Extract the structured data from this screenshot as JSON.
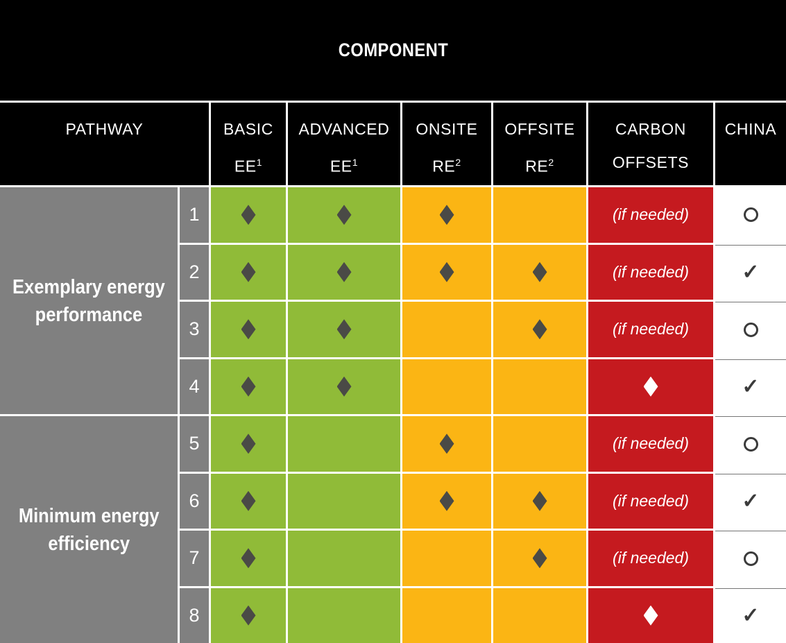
{
  "chart_data": {
    "type": "table",
    "title": "COMPONENT",
    "column_headers": [
      {
        "label": "PATHWAY"
      },
      {
        "line1": "BASIC",
        "line2": "EE",
        "sup": "1"
      },
      {
        "line1": "ADVANCED",
        "line2": "EE",
        "sup": "1"
      },
      {
        "line1": "ONSITE",
        "line2": "RE",
        "sup": "2"
      },
      {
        "line1": "OFFSITE",
        "line2": "RE",
        "sup": "2"
      },
      {
        "line1": "CARBON",
        "line2": "OFFSETS",
        "sup": ""
      },
      {
        "line1": "CHINA",
        "line2": "",
        "sup": ""
      }
    ],
    "row_groups": [
      {
        "lines": [
          "Exemplary energy",
          "performance"
        ],
        "pathways": [
          "1",
          "2",
          "3",
          "4"
        ]
      },
      {
        "lines": [
          "Minimum energy",
          "efficiency"
        ],
        "pathways": [
          "5",
          "6",
          "7",
          "8"
        ]
      }
    ],
    "rows": [
      {
        "pathway": "1",
        "basic_ee": true,
        "advanced_ee": true,
        "onsite_re": true,
        "offsite_re": false,
        "carbon_offsets": "if_needed",
        "china": "circle"
      },
      {
        "pathway": "2",
        "basic_ee": true,
        "advanced_ee": true,
        "onsite_re": true,
        "offsite_re": true,
        "carbon_offsets": "if_needed",
        "china": "check"
      },
      {
        "pathway": "3",
        "basic_ee": true,
        "advanced_ee": true,
        "onsite_re": false,
        "offsite_re": true,
        "carbon_offsets": "if_needed",
        "china": "circle"
      },
      {
        "pathway": "4",
        "basic_ee": true,
        "advanced_ee": true,
        "onsite_re": false,
        "offsite_re": false,
        "carbon_offsets": "diamond",
        "china": "check"
      },
      {
        "pathway": "5",
        "basic_ee": true,
        "advanced_ee": false,
        "onsite_re": true,
        "offsite_re": false,
        "carbon_offsets": "if_needed",
        "china": "circle"
      },
      {
        "pathway": "6",
        "basic_ee": true,
        "advanced_ee": false,
        "onsite_re": true,
        "offsite_re": true,
        "carbon_offsets": "if_needed",
        "china": "check"
      },
      {
        "pathway": "7",
        "basic_ee": true,
        "advanced_ee": false,
        "onsite_re": false,
        "offsite_re": true,
        "carbon_offsets": "if_needed",
        "china": "circle"
      },
      {
        "pathway": "8",
        "basic_ee": true,
        "advanced_ee": false,
        "onsite_re": false,
        "offsite_re": false,
        "carbon_offsets": "diamond",
        "china": "check"
      }
    ],
    "cell_text": {
      "if_needed": "(if needed)"
    },
    "symbols": {
      "diamond": "♦",
      "check": "✓",
      "circle": "○"
    }
  },
  "colors": {
    "background_black": "#000000",
    "group_gray": "#808080",
    "ee_green": "#90BB38",
    "re_orange": "#FBB514",
    "offsets_red": "#C51A1F",
    "diamond_dark": "#4A4A46",
    "china_mark_dark": "#3B3B3B",
    "grid_line_white": "#FFFFFF",
    "china_row_divider": "#757575"
  }
}
